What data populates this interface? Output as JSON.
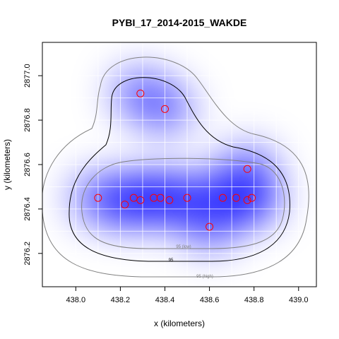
{
  "chart_data": {
    "type": "scatter",
    "title": "PYBI_17_2014-2015_WAKDE",
    "xlabel": "x (kilometers)",
    "ylabel": "y (kilometers)",
    "xlim": [
      437.85,
      439.08
    ],
    "ylim": [
      2876.05,
      2877.15
    ],
    "xticks": [
      "438.0",
      "438.2",
      "438.4",
      "438.6",
      "438.8",
      "439.0"
    ],
    "yticks": [
      "2876.2",
      "2876.4",
      "2876.6",
      "2876.8",
      "2877.0"
    ],
    "grid": true,
    "points": [
      {
        "x": 438.29,
        "y": 2876.92
      },
      {
        "x": 438.4,
        "y": 2876.85
      },
      {
        "x": 438.77,
        "y": 2876.58
      },
      {
        "x": 438.1,
        "y": 2876.45
      },
      {
        "x": 438.22,
        "y": 2876.42
      },
      {
        "x": 438.26,
        "y": 2876.45
      },
      {
        "x": 438.29,
        "y": 2876.44
      },
      {
        "x": 438.35,
        "y": 2876.45
      },
      {
        "x": 438.38,
        "y": 2876.45
      },
      {
        "x": 438.42,
        "y": 2876.44
      },
      {
        "x": 438.5,
        "y": 2876.45
      },
      {
        "x": 438.66,
        "y": 2876.45
      },
      {
        "x": 438.72,
        "y": 2876.45
      },
      {
        "x": 438.77,
        "y": 2876.44
      },
      {
        "x": 438.79,
        "y": 2876.45
      },
      {
        "x": 438.6,
        "y": 2876.32
      }
    ],
    "contour_labels": {
      "low": "95 (low)",
      "mid": "95",
      "high": "95 (high)"
    },
    "colors": {
      "density": "#0000ff",
      "points": "#ff0000",
      "contour_low": "#808080",
      "contour_mid": "#000000",
      "contour_high": "#808080",
      "grid": "#ffffff"
    }
  }
}
